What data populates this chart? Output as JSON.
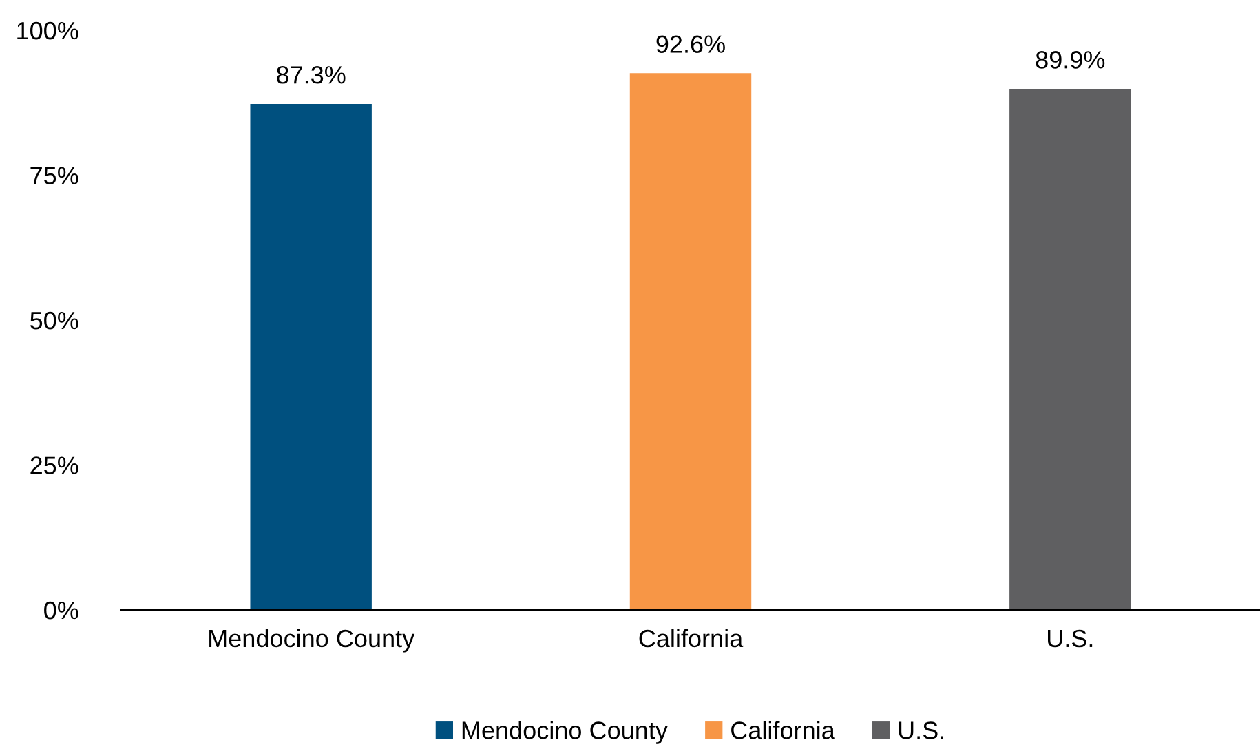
{
  "chart_data": {
    "type": "bar",
    "categories": [
      "Mendocino County",
      "California",
      "U.S."
    ],
    "series": [
      {
        "name": "Mendocino County",
        "color": "#00507f",
        "values": [
          87.3,
          null,
          null
        ],
        "value_labels": [
          "87.3%",
          null,
          null
        ]
      },
      {
        "name": "California",
        "color": "#f79646",
        "values": [
          null,
          92.6,
          null
        ],
        "value_labels": [
          null,
          "92.6%",
          null
        ]
      },
      {
        "name": "U.S.",
        "color": "#5f5f61",
        "values": [
          null,
          null,
          89.9
        ],
        "value_labels": [
          null,
          null,
          "89.9%"
        ]
      }
    ],
    "ylim": [
      0,
      100
    ],
    "yticks": [
      {
        "value": 0,
        "label": "0%"
      },
      {
        "value": 25,
        "label": "25%"
      },
      {
        "value": 50,
        "label": "50%"
      },
      {
        "value": 75,
        "label": "75%"
      },
      {
        "value": 100,
        "label": "100%"
      }
    ],
    "grid": false,
    "legend": "bottom"
  }
}
